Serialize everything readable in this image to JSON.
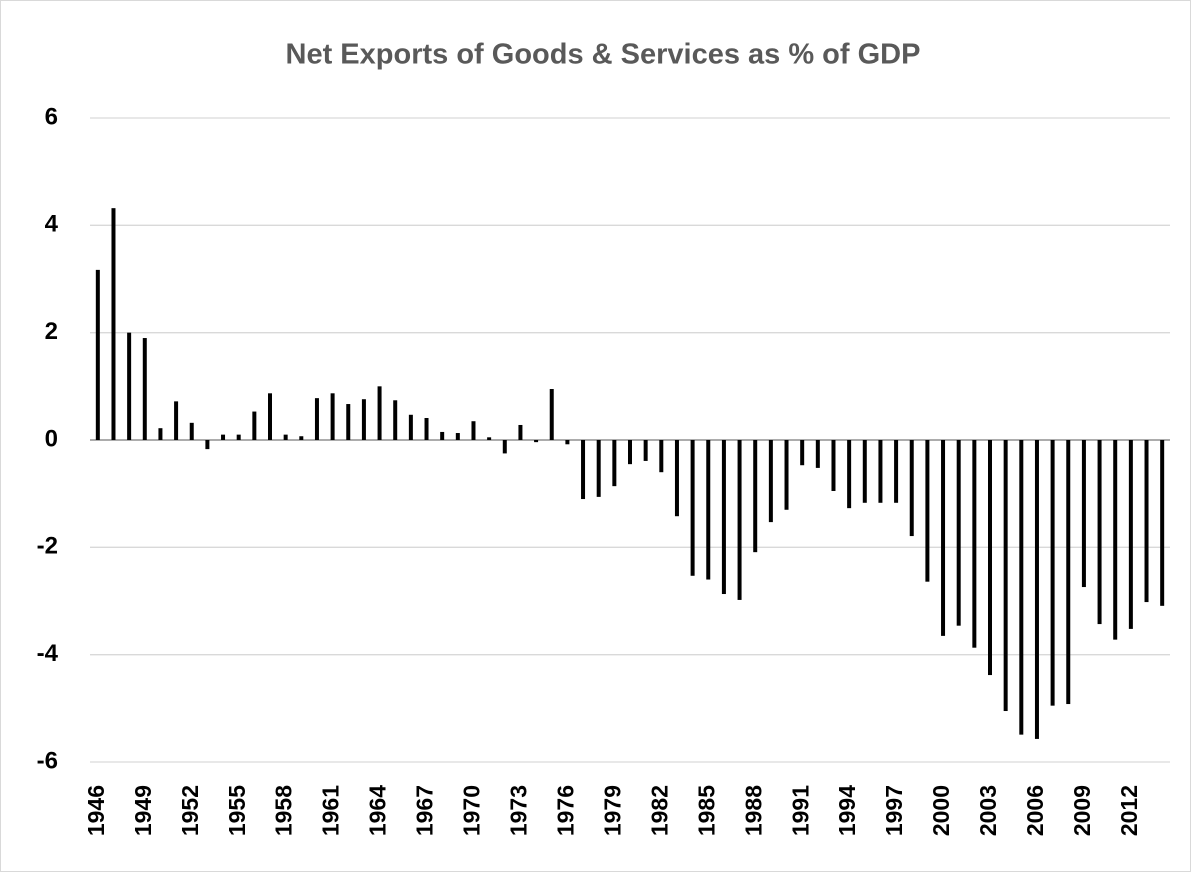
{
  "chart_data": {
    "type": "bar",
    "title": "Net Exports of Goods & Services as % of GDP",
    "categories": [
      "1946",
      null,
      null,
      "1949",
      null,
      null,
      "1952",
      null,
      null,
      "1955",
      null,
      null,
      "1958",
      null,
      null,
      "1961",
      null,
      null,
      "1964",
      null,
      null,
      "1967",
      null,
      null,
      "1970",
      null,
      null,
      "1973",
      null,
      null,
      "1976",
      null,
      null,
      "1979",
      null,
      null,
      "1982",
      null,
      null,
      "1985",
      null,
      null,
      "1988",
      null,
      null,
      "1991",
      null,
      null,
      "1994",
      null,
      null,
      "1997",
      null,
      null,
      "2000",
      null,
      null,
      "2003",
      null,
      null,
      "2006",
      null,
      null,
      "2009",
      null,
      null,
      "2012",
      null,
      null
    ],
    "values": [
      3.17,
      4.32,
      2.0,
      1.9,
      0.22,
      0.72,
      0.32,
      -0.17,
      0.1,
      0.1,
      0.53,
      0.87,
      0.1,
      0.07,
      0.78,
      0.87,
      0.67,
      0.76,
      1.0,
      0.74,
      0.47,
      0.41,
      0.15,
      0.13,
      0.35,
      0.05,
      -0.25,
      0.28,
      -0.04,
      0.95,
      -0.08,
      -1.1,
      -1.06,
      -0.86,
      -0.45,
      -0.39,
      -0.6,
      -1.42,
      -2.53,
      -2.6,
      -2.87,
      -2.98,
      -2.09,
      -1.53,
      -1.3,
      -0.47,
      -0.52,
      -0.95,
      -1.27,
      -1.17,
      -1.17,
      -1.17,
      -1.79,
      -2.64,
      -3.65,
      -3.46,
      -3.87,
      -4.38,
      -5.05,
      -5.49,
      -5.57,
      -4.95,
      -4.92,
      -2.74,
      -3.43,
      -3.72,
      -3.52,
      -3.02,
      -3.09
    ],
    "color": "#000000",
    "ylim": [
      -6,
      6
    ],
    "yticks": [
      -6,
      -4,
      -2,
      0,
      2,
      4,
      6
    ],
    "grid": true
  }
}
